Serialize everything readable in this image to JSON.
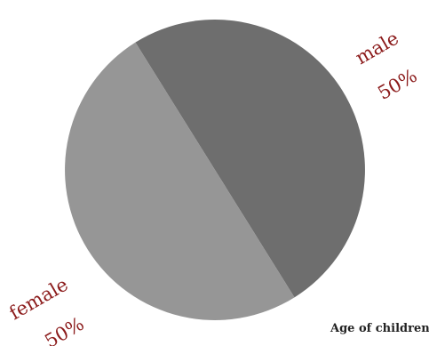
{
  "chart_data": {
    "type": "pie",
    "title": "Age of children",
    "slices": [
      {
        "label": "male",
        "value": 50,
        "value_label": "50%",
        "color": "#6e6e6e"
      },
      {
        "label": "female",
        "value": 50,
        "value_label": "50%",
        "color": "#969696"
      }
    ],
    "start_angle_deg": -122,
    "direction": "clockwise",
    "legend": "none"
  }
}
